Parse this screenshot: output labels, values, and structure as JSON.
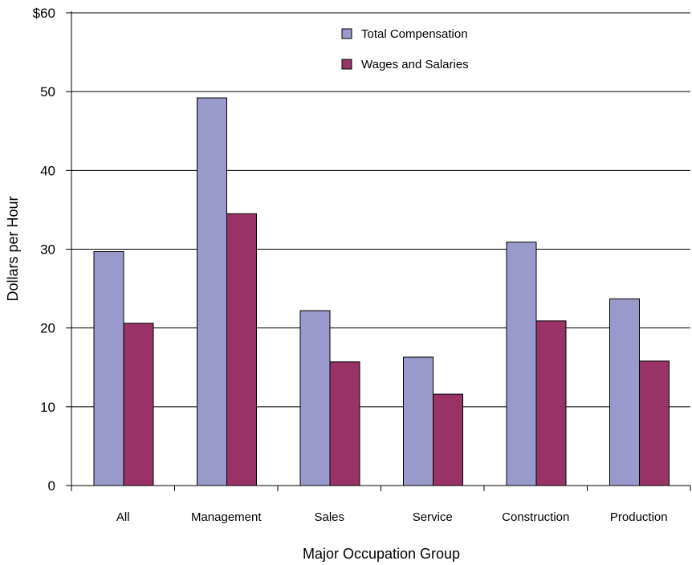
{
  "chart_data": {
    "type": "bar",
    "categories": [
      "All",
      "Management",
      "Sales",
      "Service",
      "Construction",
      "Production"
    ],
    "series": [
      {
        "name": "Total Compensation",
        "color": "#9999cc",
        "values": [
          29.7,
          49.2,
          22.2,
          16.3,
          30.9,
          23.7
        ]
      },
      {
        "name": "Wages and Salaries",
        "color": "#993366",
        "values": [
          20.6,
          34.5,
          15.7,
          11.6,
          20.9,
          15.8
        ]
      }
    ],
    "xlabel": "Major Occupation Group",
    "ylabel": "Dollars per Hour",
    "ylim": [
      0,
      60
    ],
    "yticks": [
      0,
      10,
      20,
      30,
      40,
      50,
      60
    ],
    "ytick_labels": [
      "0",
      "10",
      "20",
      "30",
      "40",
      "50",
      "$60"
    ],
    "grid": true,
    "legend_position": "top-right"
  }
}
